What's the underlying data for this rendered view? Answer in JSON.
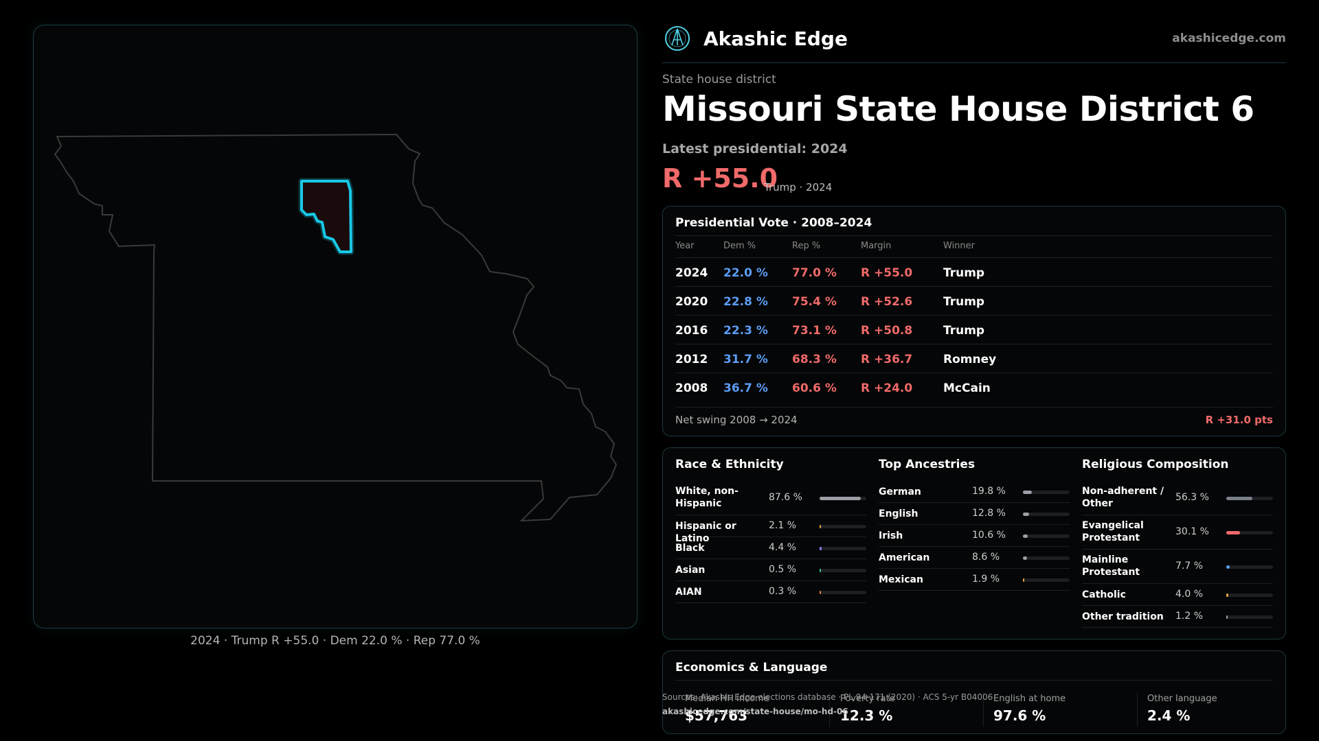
{
  "brand": {
    "name": "Akashic Edge",
    "url": "akashicedge.com"
  },
  "header": {
    "kicker": "State house district",
    "title": "Missouri State House District 6",
    "latest": "Latest presidential: 2024",
    "margin": "R +55.0",
    "margin_sub": "Trump · 2024"
  },
  "map": {
    "caption": "2024 · Trump R +55.0 · Dem 22.0 % · Rep 77.0 %",
    "colors": {
      "state_outline": "#3a3a3a",
      "district_glow": "#19c8e6",
      "district_fill": "#1a0a0c"
    }
  },
  "presidential": {
    "title": "Presidential Vote · 2008–2024",
    "headers": {
      "year": "Year",
      "dem": "Dem %",
      "rep": "Rep %",
      "margin": "Margin",
      "winner": "Winner"
    },
    "rows": [
      {
        "year": "2024",
        "dem": "22.0 %",
        "rep": "77.0 %",
        "margin": "R +55.0",
        "winner": "Trump"
      },
      {
        "year": "2020",
        "dem": "22.8 %",
        "rep": "75.4 %",
        "margin": "R +52.6",
        "winner": "Trump"
      },
      {
        "year": "2016",
        "dem": "22.3 %",
        "rep": "73.1 %",
        "margin": "R +50.8",
        "winner": "Trump"
      },
      {
        "year": "2012",
        "dem": "31.7 %",
        "rep": "68.3 %",
        "margin": "R +36.7",
        "winner": "Romney"
      },
      {
        "year": "2008",
        "dem": "36.7 %",
        "rep": "60.6 %",
        "margin": "R +24.0",
        "winner": "McCain"
      }
    ],
    "net_label": "Net swing 2008 → 2024",
    "net_value": "R +31.0 pts"
  },
  "demographics": {
    "race": {
      "title": "Race & Ethnicity",
      "items": [
        {
          "label": "White, non-Hispanic",
          "pct": "87.6 %",
          "value": 87.6,
          "color": "#9aa0a6"
        },
        {
          "label": "Hispanic or Latino",
          "pct": "2.1 %",
          "value": 2.1,
          "color": "#e5a23a"
        },
        {
          "label": "Black",
          "pct": "4.4 %",
          "value": 4.4,
          "color": "#8c7ef0"
        },
        {
          "label": "Asian",
          "pct": "0.5 %",
          "value": 0.5,
          "color": "#3fc2a8"
        },
        {
          "label": "AIAN",
          "pct": "0.3 %",
          "value": 0.3,
          "color": "#e07a4a"
        }
      ]
    },
    "ancestry": {
      "title": "Top Ancestries",
      "items": [
        {
          "label": "German",
          "pct": "19.8 %",
          "value": 19.8,
          "color": "#9aa0a6"
        },
        {
          "label": "English",
          "pct": "12.8 %",
          "value": 12.8,
          "color": "#9aa0a6"
        },
        {
          "label": "Irish",
          "pct": "10.6 %",
          "value": 10.6,
          "color": "#9aa0a6"
        },
        {
          "label": "American",
          "pct": "8.6 %",
          "value": 8.6,
          "color": "#9aa0a6"
        },
        {
          "label": "Mexican",
          "pct": "1.9 %",
          "value": 1.9,
          "color": "#e5a23a"
        }
      ]
    },
    "religion": {
      "title": "Religious Composition",
      "items": [
        {
          "label": "Non-adherent / Other",
          "pct": "56.3 %",
          "value": 56.3,
          "color": "#7a8088"
        },
        {
          "label": "Evangelical Protestant",
          "pct": "30.1 %",
          "value": 30.1,
          "color": "#f06a6a"
        },
        {
          "label": "Mainline Protestant",
          "pct": "7.7 %",
          "value": 7.7,
          "color": "#5b9df5"
        },
        {
          "label": "Catholic",
          "pct": "4.0 %",
          "value": 4.0,
          "color": "#e5a23a"
        },
        {
          "label": "Other tradition",
          "pct": "1.2 %",
          "value": 1.2,
          "color": "#9aa0a6"
        }
      ]
    }
  },
  "economics": {
    "title": "Economics & Language",
    "stats": [
      {
        "label": "Median HH income",
        "value": "$57,763"
      },
      {
        "label": "Poverty rate",
        "value": "12.3 %"
      },
      {
        "label": "English at home",
        "value": "97.6 %"
      },
      {
        "label": "Other language",
        "value": "2.4 %"
      }
    ]
  },
  "footer": {
    "source": "Sources: Akashic Edge elections database · PL 94-171 (2020) · ACS 5-yr B04006",
    "url": "akashicedge.com/state-house/mo-hd-06"
  }
}
